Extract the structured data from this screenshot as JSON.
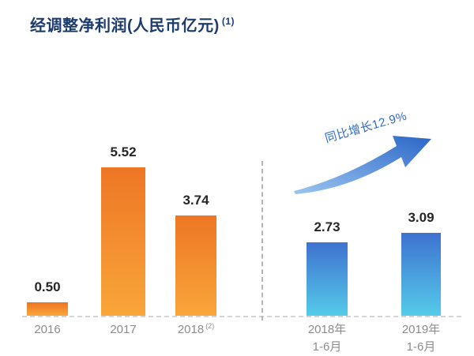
{
  "title": {
    "text": "经调整净利润(人民币亿元)",
    "superscript": "(1)"
  },
  "chart_data": {
    "type": "bar",
    "title": "经调整净利润(人民币亿元)",
    "title_footnote": "(1)",
    "unit": "人民币亿元",
    "annotation": "同比增长12.9%",
    "ylim": [
      0,
      6
    ],
    "grid": false,
    "legend": "none",
    "groups": [
      {
        "name": "annual",
        "palette": "orange",
        "bars": [
          {
            "label": "2016",
            "value": 0.5,
            "display": "0.50"
          },
          {
            "label": "2017",
            "value": 5.52,
            "display": "5.52"
          },
          {
            "label": "2018",
            "suffix": "(2)",
            "value": 3.74,
            "display": "3.74"
          }
        ]
      },
      {
        "name": "half-year",
        "palette": "blue",
        "bars": [
          {
            "label": "2018年",
            "label2": "1-6月",
            "value": 2.73,
            "display": "2.73"
          },
          {
            "label": "2019年",
            "label2": "1-6月",
            "value": 3.09,
            "display": "3.09"
          }
        ]
      }
    ]
  },
  "colors": {
    "title": "#1d3c6e",
    "annotation": "#2f6cc5",
    "orange_top": "#ed7624",
    "orange_bottom": "#f9a63a",
    "blue_top": "#3e72d0",
    "blue_bottom": "#55cbe9",
    "value_label": "#262626",
    "axis_label": "#8c8c8c",
    "axis_line": "#d4d4d4",
    "arrow_light": "#9cc6f0",
    "arrow_dark": "#2a66c8"
  }
}
